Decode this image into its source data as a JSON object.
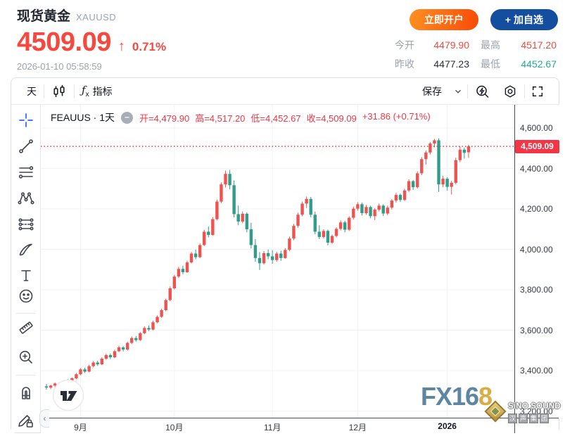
{
  "header": {
    "title": "现货黄金",
    "symbol": "XAUUSD",
    "price": "4509.09",
    "up_arrow": "↑",
    "change_percent": "0.71%",
    "timestamp": "2026-01-10 05:58:59",
    "open_account_button": "立即开户",
    "add_watchlist_button": "+ 加自选",
    "stats": [
      {
        "label": "今开",
        "value": "4479.90",
        "color": "#f5483f"
      },
      {
        "label": "最高",
        "value": "4517.20",
        "color": "#f5483f"
      },
      {
        "label": "昨收",
        "value": "4477.23",
        "color": "#2b2f38"
      },
      {
        "label": "最低",
        "value": "4452.67",
        "color": "#21ab94"
      }
    ]
  },
  "toolbar": {
    "interval": "天",
    "fx_f": "ƒ",
    "fx_x": "x",
    "indicators": "指标",
    "save": "保存",
    "icons": [
      "candles-icon",
      "chevron-down-icon",
      "quick-search-icon",
      "settings-icon",
      "fullscreen-icon"
    ]
  },
  "drawing_toolbar": {
    "tools": [
      "crosshair",
      "trend-line",
      "fib-retracement",
      "xabcd-pattern",
      "projection",
      "brush",
      "text",
      "emoji",
      "ruler",
      "zoom-in",
      "magnet",
      "lock-all-drawings"
    ]
  },
  "legend": {
    "symbol_interval": "FEAUUS · 1天",
    "collapse": "–",
    "ohlc": [
      "开=4,479.90",
      "高=4,517.20",
      "低=4,452.67",
      "收=4,509.09",
      "+31.86 (+0.71%)"
    ]
  },
  "chart_data": {
    "type": "candlestick",
    "title": "FEAUUS 1天 (XAUUSD daily)",
    "rising_color": "#ef5350",
    "falling_color": "#2f9d8a",
    "grid_color": "#f0f3f8",
    "dotted_line_color": "#f23645",
    "ylim": [
      3200,
      4600
    ],
    "yticks": [
      {
        "value": 4600,
        "label": "4,600.00"
      },
      {
        "value": 4400,
        "label": "4,400.00"
      },
      {
        "value": 4200,
        "label": "4,200.00"
      },
      {
        "value": 4000,
        "label": "4,000.00"
      },
      {
        "value": 3800,
        "label": "3,800.00"
      },
      {
        "value": 3600,
        "label": "3,600.00"
      },
      {
        "value": 3400,
        "label": "3,400.00"
      },
      {
        "value": 3200,
        "label": "3,200.00"
      }
    ],
    "xticks": [
      {
        "label": "9月",
        "index": 8,
        "bold": false
      },
      {
        "label": "10月",
        "index": 30,
        "bold": false
      },
      {
        "label": "11月",
        "index": 53,
        "bold": false
      },
      {
        "label": "12月",
        "index": 73,
        "bold": false
      },
      {
        "label": "2026",
        "index": 94,
        "bold": true
      }
    ],
    "current_price": 4509.09,
    "current_price_label": "4,509.09",
    "ohlc": [
      [
        3322,
        3334,
        3306,
        3316
      ],
      [
        3316,
        3330,
        3308,
        3326
      ],
      [
        3326,
        3341,
        3318,
        3336
      ],
      [
        3336,
        3342,
        3320,
        3328
      ],
      [
        3328,
        3352,
        3324,
        3348
      ],
      [
        3348,
        3357,
        3336,
        3342
      ],
      [
        3342,
        3366,
        3338,
        3362
      ],
      [
        3362,
        3388,
        3357,
        3382
      ],
      [
        3382,
        3412,
        3377,
        3406
      ],
      [
        3406,
        3414,
        3388,
        3395
      ],
      [
        3395,
        3428,
        3391,
        3422
      ],
      [
        3422,
        3447,
        3417,
        3440
      ],
      [
        3440,
        3449,
        3423,
        3431
      ],
      [
        3431,
        3466,
        3427,
        3459
      ],
      [
        3459,
        3483,
        3453,
        3477
      ],
      [
        3477,
        3485,
        3457,
        3466
      ],
      [
        3466,
        3503,
        3461,
        3496
      ],
      [
        3496,
        3523,
        3491,
        3515
      ],
      [
        3515,
        3521,
        3495,
        3504
      ],
      [
        3504,
        3543,
        3499,
        3537
      ],
      [
        3537,
        3569,
        3531,
        3561
      ],
      [
        3561,
        3571,
        3543,
        3551
      ],
      [
        3551,
        3591,
        3547,
        3585
      ],
      [
        3585,
        3619,
        3580,
        3611
      ],
      [
        3611,
        3623,
        3595,
        3603
      ],
      [
        3603,
        3646,
        3599,
        3639
      ],
      [
        3639,
        3673,
        3634,
        3666
      ],
      [
        3666,
        3706,
        3661,
        3699
      ],
      [
        3699,
        3756,
        3694,
        3749
      ],
      [
        3749,
        3816,
        3744,
        3807
      ],
      [
        3807,
        3873,
        3801,
        3865
      ],
      [
        3865,
        3913,
        3858,
        3903
      ],
      [
        3903,
        3919,
        3877,
        3887
      ],
      [
        3887,
        3943,
        3883,
        3935
      ],
      [
        3935,
        3987,
        3930,
        3979
      ],
      [
        3979,
        3999,
        3951,
        3961
      ],
      [
        3961,
        4029,
        3957,
        4021
      ],
      [
        4021,
        4096,
        4016,
        4087
      ],
      [
        4087,
        4113,
        4059,
        4071
      ],
      [
        4071,
        4159,
        4067,
        4149
      ],
      [
        4149,
        4246,
        4143,
        4236
      ],
      [
        4236,
        4331,
        4229,
        4321
      ],
      [
        4321,
        4389,
        4306,
        4373
      ],
      [
        4373,
        4393,
        4297,
        4317
      ],
      [
        4317,
        4341,
        4158,
        4174
      ],
      [
        4174,
        4216,
        4119,
        4137
      ],
      [
        4137,
        4187,
        4129,
        4176
      ],
      [
        4176,
        4183,
        4084,
        4099
      ],
      [
        4099,
        4131,
        4004,
        4021
      ],
      [
        4021,
        4051,
        3939,
        3957
      ],
      [
        3957,
        3986,
        3898,
        3931
      ],
      [
        3931,
        3991,
        3925,
        3981
      ],
      [
        3981,
        3999,
        3951,
        3965
      ],
      [
        3965,
        3996,
        3929,
        3947
      ],
      [
        3947,
        3987,
        3939,
        3979
      ],
      [
        3979,
        3993,
        3943,
        3957
      ],
      [
        3957,
        4006,
        3953,
        3997
      ],
      [
        3997,
        4063,
        3991,
        4053
      ],
      [
        4053,
        4126,
        4045,
        4116
      ],
      [
        4116,
        4181,
        4107,
        4171
      ],
      [
        4171,
        4236,
        4163,
        4226
      ],
      [
        4226,
        4261,
        4204,
        4249
      ],
      [
        4249,
        4259,
        4158,
        4171
      ],
      [
        4171,
        4186,
        4074,
        4087
      ],
      [
        4087,
        4119,
        4051,
        4061
      ],
      [
        4061,
        4099,
        4054,
        4091
      ],
      [
        4091,
        4097,
        4019,
        4033
      ],
      [
        4033,
        4073,
        4027,
        4066
      ],
      [
        4066,
        4109,
        4059,
        4101
      ],
      [
        4101,
        4143,
        4093,
        4133
      ],
      [
        4133,
        4141,
        4084,
        4097
      ],
      [
        4097,
        4163,
        4091,
        4156
      ],
      [
        4156,
        4211,
        4147,
        4201
      ],
      [
        4201,
        4233,
        4191,
        4223
      ],
      [
        4223,
        4231,
        4167,
        4179
      ],
      [
        4179,
        4219,
        4171,
        4209
      ],
      [
        4209,
        4216,
        4154,
        4164
      ],
      [
        4164,
        4203,
        4144,
        4196
      ],
      [
        4196,
        4226,
        4187,
        4216
      ],
      [
        4216,
        4223,
        4164,
        4177
      ],
      [
        4177,
        4216,
        4169,
        4206
      ],
      [
        4206,
        4249,
        4197,
        4241
      ],
      [
        4241,
        4279,
        4231,
        4269
      ],
      [
        4269,
        4276,
        4234,
        4244
      ],
      [
        4244,
        4299,
        4239,
        4291
      ],
      [
        4291,
        4346,
        4283,
        4337
      ],
      [
        4337,
        4343,
        4294,
        4307
      ],
      [
        4307,
        4386,
        4301,
        4376
      ],
      [
        4376,
        4456,
        4367,
        4446
      ],
      [
        4446,
        4489,
        4419,
        4479
      ],
      [
        4479,
        4531,
        4469,
        4523
      ],
      [
        4523,
        4546,
        4504,
        4539
      ],
      [
        4539,
        4549,
        4284,
        4321
      ],
      [
        4321,
        4363,
        4307,
        4349
      ],
      [
        4349,
        4357,
        4291,
        4309
      ],
      [
        4309,
        4339,
        4271,
        4329
      ],
      [
        4329,
        4453,
        4321,
        4441
      ],
      [
        4441,
        4509,
        4431,
        4493
      ],
      [
        4493,
        4503,
        4449,
        4477.23
      ],
      [
        4479.9,
        4517.2,
        4452.67,
        4509.09
      ]
    ]
  },
  "watermarks": {
    "fx168_blue": "FX16",
    "fx168_gold": "8",
    "sino_line1": "SiNO SOUND",
    "sino_chars": [
      "汉",
      "声",
      "集",
      "团"
    ]
  },
  "misc": {
    "collapse_tab": "‹"
  }
}
